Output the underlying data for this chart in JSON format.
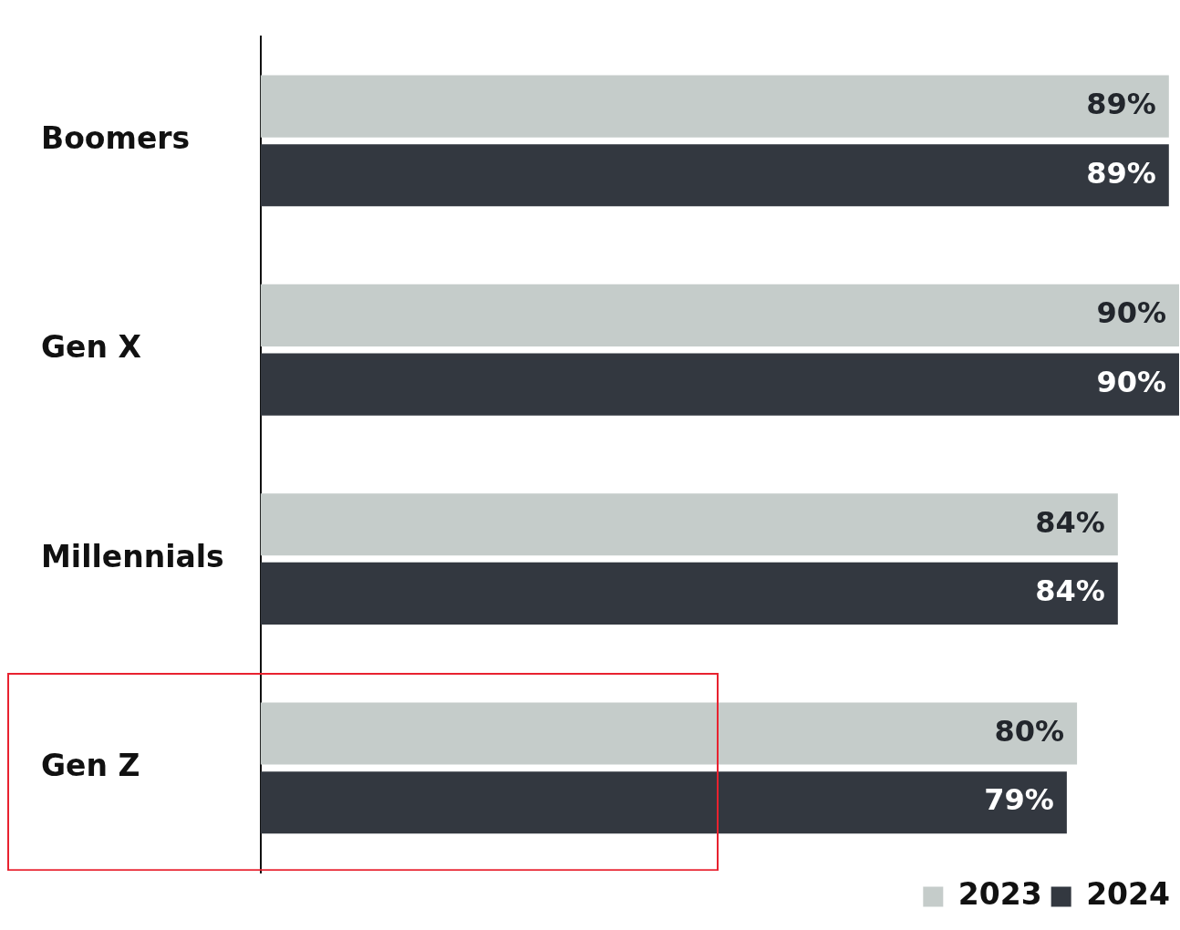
{
  "chart_data": {
    "type": "bar",
    "orientation": "horizontal",
    "categories": [
      "Boomers",
      "Gen X",
      "Millennials",
      "Gen Z"
    ],
    "series": [
      {
        "name": "2023",
        "color": "#c5ccca",
        "values": [
          89,
          90,
          84,
          80
        ],
        "value_labels": [
          "89%",
          "90%",
          "84%",
          "80%"
        ]
      },
      {
        "name": "2024",
        "color": "#333840",
        "values": [
          89,
          90,
          84,
          79
        ],
        "value_labels": [
          "89%",
          "90%",
          "84%",
          "79%"
        ]
      }
    ],
    "legend": "bottom right",
    "tick_labels": "y"
  }
}
